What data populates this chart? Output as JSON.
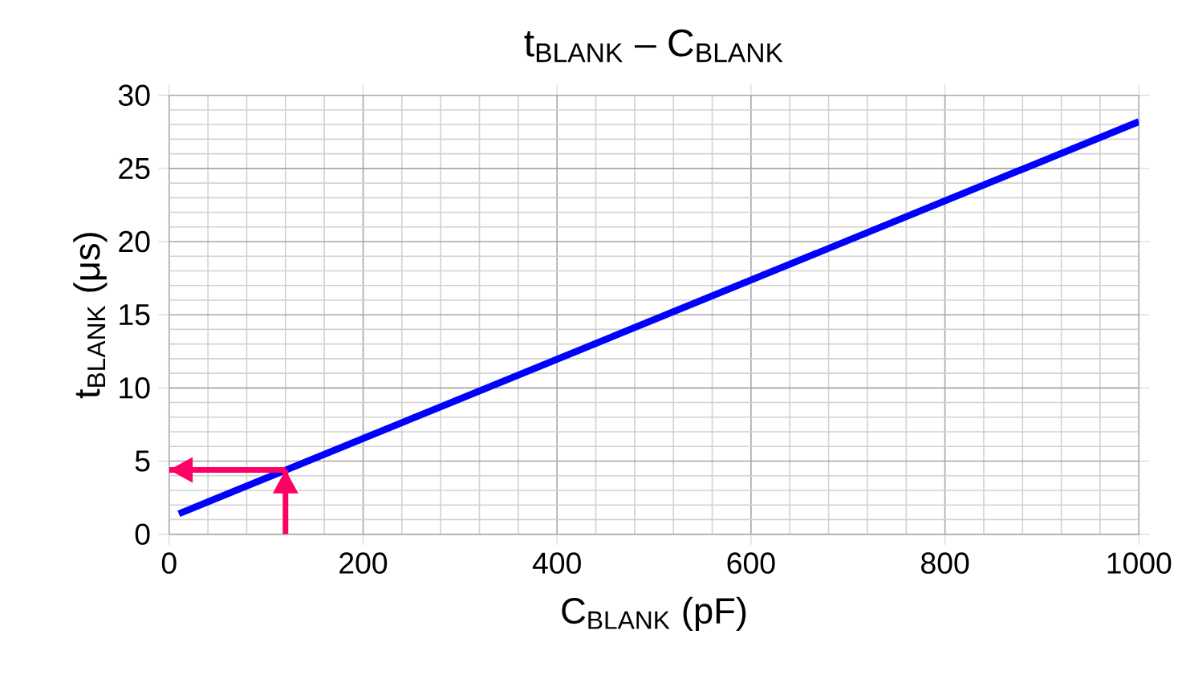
{
  "chart_data": {
    "type": "line",
    "title": "t$_{BLANK}$  –  C$_{BLANK}$",
    "xlabel": "C$_{BLANK}$  (pF)",
    "ylabel": "t$_{BLANK}$  (μs)",
    "xlim": [
      0,
      1000
    ],
    "xticks": [
      0,
      200,
      400,
      600,
      800,
      1000
    ],
    "ylim": [
      0,
      30
    ],
    "yticks": [
      0,
      5,
      10,
      15,
      20,
      25,
      30
    ],
    "grid": true,
    "series": [
      {
        "color": "#0000ff",
        "x": [
          10,
          1000
        ],
        "values": [
          1.4,
          28.2
        ]
      },
      {
        "color": "#ff0066",
        "x": [
          120,
          120
        ],
        "values": [
          0,
          4.4
        ]
      },
      {
        "color": "#ff0066",
        "x": [
          120,
          0
        ],
        "values": [
          4.4,
          4.4
        ]
      }
    ]
  }
}
